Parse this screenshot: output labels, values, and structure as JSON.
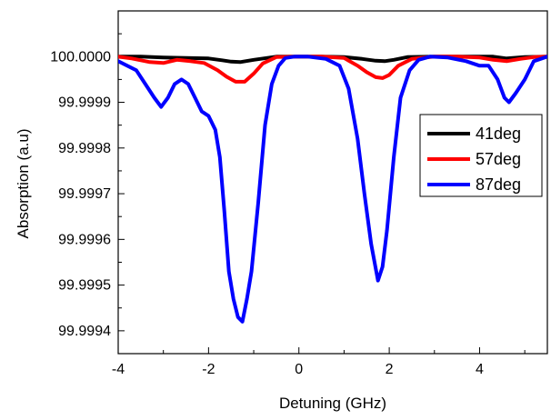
{
  "chart_data": {
    "type": "line",
    "xlabel": "Detuning (GHz)",
    "ylabel": "Absorption (a.u)",
    "xlim": [
      -4,
      5.5
    ],
    "ylim": [
      99.99935,
      100.0001
    ],
    "xticks": [
      "-4",
      "-2",
      "0",
      "2",
      "4"
    ],
    "xtick_values": [
      -4,
      -2,
      0,
      2,
      4
    ],
    "yticks": [
      "99.9994",
      "99.9995",
      "99.9996",
      "99.9997",
      "99.9998",
      "99.9999",
      "100.0000"
    ],
    "ytick_values": [
      99.9994,
      99.9995,
      99.9996,
      99.9997,
      99.9998,
      99.9999,
      100.0
    ],
    "grid": false,
    "legend_position": "center-right",
    "series": [
      {
        "name": "41deg",
        "color": "#000000",
        "x": [
          -4.0,
          -3.5,
          -3.0,
          -2.5,
          -2.0,
          -1.7,
          -1.5,
          -1.3,
          -1.0,
          -0.5,
          0.0,
          0.5,
          1.0,
          1.4,
          1.7,
          1.9,
          2.1,
          2.4,
          3.0,
          3.5,
          4.0,
          4.3,
          4.6,
          5.0,
          5.5
        ],
        "y": [
          100.0,
          100.0,
          99.999998,
          99.999997,
          99.999996,
          99.999992,
          99.999989,
          99.999988,
          99.999993,
          100.0,
          100.0,
          100.0,
          99.999999,
          99.999995,
          99.999991,
          99.99999,
          99.999993,
          99.999999,
          100.0,
          100.0,
          100.0,
          100.0,
          99.999996,
          99.999999,
          100.0
        ]
      },
      {
        "name": "57deg",
        "color": "#ff0000",
        "x": [
          -4.0,
          -3.7,
          -3.3,
          -3.0,
          -2.7,
          -2.4,
          -2.1,
          -1.8,
          -1.6,
          -1.4,
          -1.2,
          -1.0,
          -0.8,
          -0.5,
          0.0,
          0.5,
          1.0,
          1.3,
          1.5,
          1.7,
          1.85,
          2.0,
          2.2,
          2.5,
          3.0,
          3.5,
          4.0,
          4.3,
          4.6,
          4.9,
          5.2,
          5.5
        ],
        "y": [
          100.0,
          99.999996,
          99.999988,
          99.999986,
          99.999993,
          99.99999,
          99.999986,
          99.99997,
          99.999956,
          99.999945,
          99.999945,
          99.999963,
          99.999985,
          99.999999,
          100.0,
          100.0,
          99.999997,
          99.99998,
          99.999966,
          99.999955,
          99.999953,
          99.99996,
          99.99998,
          99.999995,
          100.0,
          100.0,
          99.999998,
          99.999993,
          99.99999,
          99.999995,
          99.999999,
          100.0
        ]
      },
      {
        "name": "87deg",
        "color": "#0000ff",
        "x": [
          -4.0,
          -3.6,
          -3.4,
          -3.2,
          -3.05,
          -2.9,
          -2.75,
          -2.6,
          -2.45,
          -2.3,
          -2.15,
          -2.0,
          -1.85,
          -1.75,
          -1.65,
          -1.55,
          -1.45,
          -1.35,
          -1.25,
          -1.15,
          -1.05,
          -0.9,
          -0.75,
          -0.6,
          -0.45,
          -0.3,
          -0.1,
          0.2,
          0.6,
          0.9,
          1.1,
          1.3,
          1.45,
          1.6,
          1.75,
          1.85,
          1.95,
          2.1,
          2.25,
          2.45,
          2.65,
          2.9,
          3.3,
          3.7,
          4.0,
          4.2,
          4.4,
          4.55,
          4.65,
          4.8,
          5.0,
          5.2,
          5.5
        ],
        "y": [
          99.99999,
          99.99997,
          99.99994,
          99.99991,
          99.99989,
          99.99991,
          99.99994,
          99.99995,
          99.99994,
          99.99991,
          99.99988,
          99.99987,
          99.99984,
          99.99978,
          99.99966,
          99.99953,
          99.99947,
          99.99943,
          99.99942,
          99.99947,
          99.99953,
          99.99968,
          99.99985,
          99.99994,
          99.99998,
          99.999997,
          100.0,
          100.0,
          99.999995,
          99.99998,
          99.99993,
          99.99982,
          99.9997,
          99.99959,
          99.99951,
          99.99954,
          99.99962,
          99.99978,
          99.99991,
          99.99997,
          99.999993,
          100.0,
          99.999998,
          99.99999,
          99.99998,
          99.99998,
          99.99995,
          99.99991,
          99.9999,
          99.99992,
          99.99995,
          99.99999,
          100.0
        ]
      }
    ]
  }
}
